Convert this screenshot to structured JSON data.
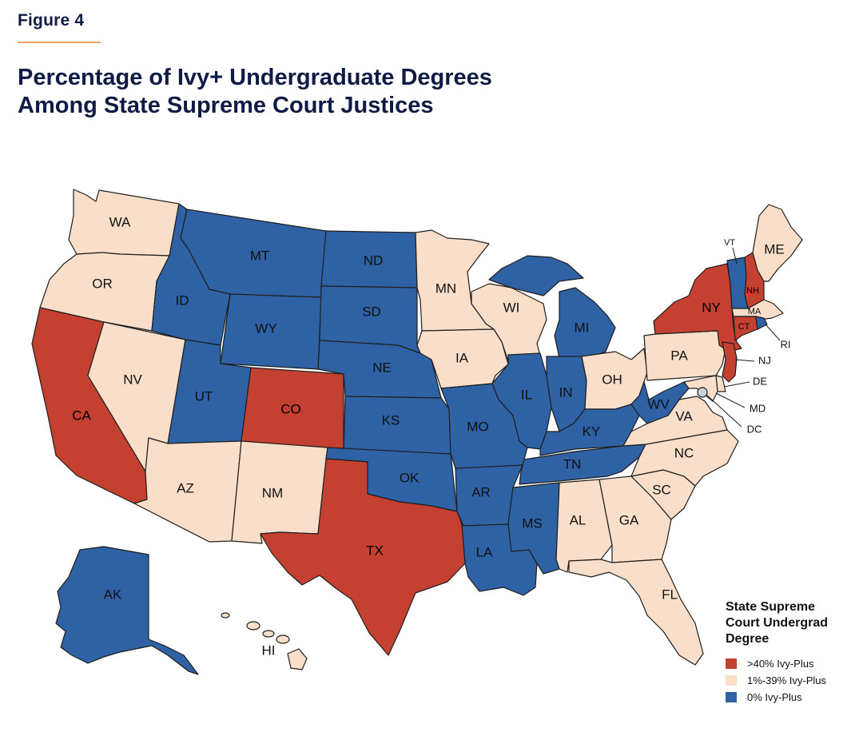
{
  "figure_label": "Figure 4",
  "title_lines": [
    "Percentage of Ivy+ Undergraduate Degrees",
    "Among State Supreme Court Justices"
  ],
  "colors": {
    "high": "#c44030",
    "mid": "#f9dfca",
    "none": "#2e62a5",
    "stroke": "#1e1e1e",
    "dc": "#c7d3dd"
  },
  "legend": {
    "title_lines": [
      "State Supreme",
      "Court Undergrad",
      "Degree"
    ],
    "items": [
      {
        "key": "high",
        "label": ">40% Ivy-Plus",
        "color": "#c44030"
      },
      {
        "key": "mid",
        "label": "1%-39% Ivy-Plus",
        "color": "#f9dfca"
      },
      {
        "key": "none",
        "label": "0% Ivy-Plus",
        "color": "#2e62a5"
      }
    ]
  },
  "states": [
    {
      "code": "WA",
      "category": "mid"
    },
    {
      "code": "OR",
      "category": "mid"
    },
    {
      "code": "CA",
      "category": "high"
    },
    {
      "code": "NV",
      "category": "mid"
    },
    {
      "code": "ID",
      "category": "none"
    },
    {
      "code": "MT",
      "category": "none"
    },
    {
      "code": "WY",
      "category": "none"
    },
    {
      "code": "UT",
      "category": "none"
    },
    {
      "code": "AZ",
      "category": "mid"
    },
    {
      "code": "CO",
      "category": "high"
    },
    {
      "code": "NM",
      "category": "mid"
    },
    {
      "code": "ND",
      "category": "none"
    },
    {
      "code": "SD",
      "category": "none"
    },
    {
      "code": "NE",
      "category": "none"
    },
    {
      "code": "KS",
      "category": "none"
    },
    {
      "code": "OK",
      "category": "none"
    },
    {
      "code": "TX",
      "category": "high"
    },
    {
      "code": "MN",
      "category": "mid"
    },
    {
      "code": "IA",
      "category": "mid"
    },
    {
      "code": "MO",
      "category": "none"
    },
    {
      "code": "AR",
      "category": "none"
    },
    {
      "code": "LA",
      "category": "none"
    },
    {
      "code": "WI",
      "category": "mid"
    },
    {
      "code": "IL",
      "category": "none"
    },
    {
      "code": "MI",
      "category": "none"
    },
    {
      "code": "IN",
      "category": "none"
    },
    {
      "code": "OH",
      "category": "mid"
    },
    {
      "code": "KY",
      "category": "none"
    },
    {
      "code": "TN",
      "category": "none"
    },
    {
      "code": "MS",
      "category": "none"
    },
    {
      "code": "AL",
      "category": "mid"
    },
    {
      "code": "GA",
      "category": "mid"
    },
    {
      "code": "FL",
      "category": "mid"
    },
    {
      "code": "SC",
      "category": "mid"
    },
    {
      "code": "NC",
      "category": "mid"
    },
    {
      "code": "VA",
      "category": "mid"
    },
    {
      "code": "WV",
      "category": "none"
    },
    {
      "code": "PA",
      "category": "mid"
    },
    {
      "code": "NY",
      "category": "high"
    },
    {
      "code": "VT",
      "category": "none"
    },
    {
      "code": "NH",
      "category": "high"
    },
    {
      "code": "ME",
      "category": "mid"
    },
    {
      "code": "MA",
      "category": "mid"
    },
    {
      "code": "RI",
      "category": "none"
    },
    {
      "code": "CT",
      "category": "high"
    },
    {
      "code": "NJ",
      "category": "high"
    },
    {
      "code": "DE",
      "category": "mid"
    },
    {
      "code": "MD",
      "category": "mid"
    },
    {
      "code": "DC",
      "category": "dc"
    },
    {
      "code": "AK",
      "category": "none"
    },
    {
      "code": "HI",
      "category": "mid"
    }
  ]
}
